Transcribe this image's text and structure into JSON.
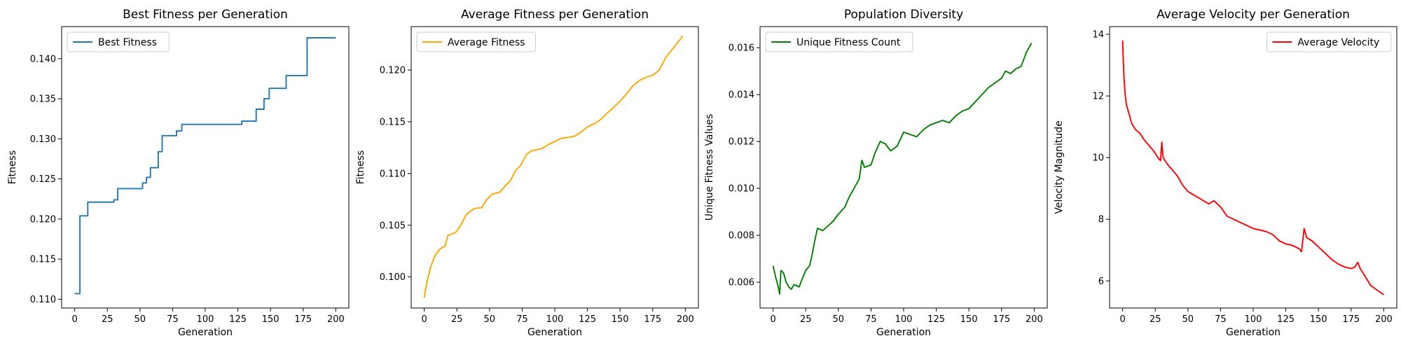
{
  "figure": {
    "background": "#ffffff"
  },
  "chart_data": [
    {
      "type": "line",
      "title": "Best Fitness per Generation",
      "xlabel": "Generation",
      "ylabel": "Fitness",
      "xlim": [
        -10,
        210
      ],
      "ylim": [
        0.1089,
        0.144
      ],
      "xticks": [
        0,
        25,
        50,
        75,
        100,
        125,
        150,
        175,
        200
      ],
      "yticks": [
        0.11,
        0.115,
        0.12,
        0.125,
        0.13,
        0.135,
        0.14
      ],
      "ytick_labels": [
        "0.110",
        "0.115",
        "0.120",
        "0.125",
        "0.130",
        "0.135",
        "0.140"
      ],
      "legend": "upper left",
      "series": [
        {
          "name": "Best Fitness",
          "color": "#1f77b4",
          "step": true,
          "points": [
            [
              0,
              0.1107
            ],
            [
              4,
              0.1204
            ],
            [
              10,
              0.1221
            ],
            [
              30,
              0.1224
            ],
            [
              33,
              0.1238
            ],
            [
              52,
              0.1245
            ],
            [
              55,
              0.1252
            ],
            [
              58,
              0.1264
            ],
            [
              64,
              0.1284
            ],
            [
              67,
              0.1304
            ],
            [
              78,
              0.131
            ],
            [
              82,
              0.1318
            ],
            [
              128,
              0.1322
            ],
            [
              139,
              0.1337
            ],
            [
              145,
              0.135
            ],
            [
              149,
              0.1363
            ],
            [
              162,
              0.1379
            ],
            [
              178,
              0.1426
            ],
            [
              200,
              0.1426
            ]
          ]
        }
      ]
    },
    {
      "type": "line",
      "title": "Average Fitness per Generation",
      "xlabel": "Generation",
      "ylabel": "Fitness",
      "xlim": [
        -10,
        210
      ],
      "ylim": [
        0.097,
        0.1242
      ],
      "xticks": [
        0,
        25,
        50,
        75,
        100,
        125,
        150,
        175,
        200
      ],
      "yticks": [
        0.1,
        0.105,
        0.11,
        0.115,
        0.12
      ],
      "ytick_labels": [
        "0.100",
        "0.105",
        "0.110",
        "0.115",
        "0.120"
      ],
      "legend": "upper left",
      "series": [
        {
          "name": "Average Fitness",
          "color": "#ffa500",
          "points": [
            [
              0,
              0.098
            ],
            [
              2,
              0.0995
            ],
            [
              5,
              0.101
            ],
            [
              8,
              0.102
            ],
            [
              12,
              0.1027
            ],
            [
              16,
              0.103
            ],
            [
              18,
              0.104
            ],
            [
              24,
              0.1043
            ],
            [
              28,
              0.105
            ],
            [
              32,
              0.106
            ],
            [
              38,
              0.1066
            ],
            [
              44,
              0.1067
            ],
            [
              48,
              0.1075
            ],
            [
              52,
              0.108
            ],
            [
              58,
              0.1082
            ],
            [
              62,
              0.1088
            ],
            [
              66,
              0.1093
            ],
            [
              70,
              0.1103
            ],
            [
              74,
              0.1108
            ],
            [
              78,
              0.1118
            ],
            [
              82,
              0.1122
            ],
            [
              90,
              0.1124
            ],
            [
              95,
              0.1128
            ],
            [
              100,
              0.1131
            ],
            [
              105,
              0.1134
            ],
            [
              115,
              0.1136
            ],
            [
              120,
              0.114
            ],
            [
              125,
              0.1145
            ],
            [
              130,
              0.1148
            ],
            [
              135,
              0.1152
            ],
            [
              140,
              0.1158
            ],
            [
              145,
              0.1164
            ],
            [
              150,
              0.117
            ],
            [
              155,
              0.1177
            ],
            [
              160,
              0.1185
            ],
            [
              165,
              0.119
            ],
            [
              170,
              0.1193
            ],
            [
              175,
              0.1195
            ],
            [
              180,
              0.12
            ],
            [
              185,
              0.1212
            ],
            [
              190,
              0.122
            ],
            [
              195,
              0.1228
            ],
            [
              198,
              0.1233
            ]
          ]
        }
      ]
    },
    {
      "type": "line",
      "title": "Population Diversity",
      "xlabel": "Generation",
      "ylabel": "Unique Fitness Values",
      "xlim": [
        -10,
        210
      ],
      "ylim": [
        0.0049,
        0.0169
      ],
      "xticks": [
        0,
        25,
        50,
        75,
        100,
        125,
        150,
        175,
        200
      ],
      "yticks": [
        0.006,
        0.008,
        0.01,
        0.012,
        0.014,
        0.016
      ],
      "ytick_labels": [
        "0.006",
        "0.008",
        "0.010",
        "0.012",
        "0.014",
        "0.016"
      ],
      "legend": "upper left",
      "series": [
        {
          "name": "Unique Fitness Count",
          "color": "#008000",
          "points": [
            [
              0,
              0.0067
            ],
            [
              2,
              0.0062
            ],
            [
              4,
              0.0058
            ],
            [
              5,
              0.0055
            ],
            [
              6,
              0.0065
            ],
            [
              8,
              0.0064
            ],
            [
              10,
              0.006
            ],
            [
              12,
              0.0058
            ],
            [
              14,
              0.0057
            ],
            [
              16,
              0.0059
            ],
            [
              20,
              0.0058
            ],
            [
              22,
              0.0061
            ],
            [
              25,
              0.0065
            ],
            [
              28,
              0.0067
            ],
            [
              30,
              0.0072
            ],
            [
              32,
              0.0078
            ],
            [
              34,
              0.0083
            ],
            [
              38,
              0.0082
            ],
            [
              42,
              0.0084
            ],
            [
              46,
              0.0086
            ],
            [
              50,
              0.0089
            ],
            [
              55,
              0.0092
            ],
            [
              58,
              0.0096
            ],
            [
              62,
              0.01
            ],
            [
              66,
              0.0104
            ],
            [
              68,
              0.0112
            ],
            [
              70,
              0.0109
            ],
            [
              75,
              0.011
            ],
            [
              78,
              0.0115
            ],
            [
              82,
              0.012
            ],
            [
              86,
              0.0119
            ],
            [
              90,
              0.0116
            ],
            [
              95,
              0.0118
            ],
            [
              100,
              0.0124
            ],
            [
              105,
              0.0123
            ],
            [
              110,
              0.0122
            ],
            [
              115,
              0.0125
            ],
            [
              120,
              0.0127
            ],
            [
              125,
              0.0128
            ],
            [
              130,
              0.0129
            ],
            [
              135,
              0.0128
            ],
            [
              140,
              0.0131
            ],
            [
              145,
              0.0133
            ],
            [
              150,
              0.0134
            ],
            [
              155,
              0.0137
            ],
            [
              160,
              0.014
            ],
            [
              165,
              0.0143
            ],
            [
              170,
              0.0145
            ],
            [
              175,
              0.0147
            ],
            [
              178,
              0.015
            ],
            [
              182,
              0.0149
            ],
            [
              186,
              0.0151
            ],
            [
              190,
              0.0152
            ],
            [
              194,
              0.0158
            ],
            [
              198,
              0.0162
            ]
          ]
        }
      ]
    },
    {
      "type": "line",
      "title": "Average Velocity per Generation",
      "xlabel": "Generation",
      "ylabel": "Velocity Magnitude",
      "xlim": [
        -10,
        210
      ],
      "ylim": [
        5.12,
        14.25
      ],
      "xticks": [
        0,
        25,
        50,
        75,
        100,
        125,
        150,
        175,
        200
      ],
      "yticks": [
        6,
        8,
        10,
        12,
        14
      ],
      "ytick_labels": [
        "6",
        "8",
        "10",
        "12",
        "14"
      ],
      "legend": "upper right",
      "series": [
        {
          "name": "Average Velocity",
          "color": "#ff0000",
          "points": [
            [
              0,
              13.8
            ],
            [
              1,
              12.6
            ],
            [
              2,
              12.0
            ],
            [
              3,
              11.7
            ],
            [
              5,
              11.4
            ],
            [
              7,
              11.1
            ],
            [
              10,
              10.9
            ],
            [
              13,
              10.8
            ],
            [
              16,
              10.6
            ],
            [
              20,
              10.4
            ],
            [
              24,
              10.2
            ],
            [
              27,
              10.0
            ],
            [
              29,
              9.9
            ],
            [
              30,
              10.5
            ],
            [
              31,
              10.0
            ],
            [
              34,
              9.8
            ],
            [
              38,
              9.6
            ],
            [
              42,
              9.4
            ],
            [
              46,
              9.1
            ],
            [
              50,
              8.9
            ],
            [
              54,
              8.8
            ],
            [
              58,
              8.7
            ],
            [
              62,
              8.6
            ],
            [
              66,
              8.5
            ],
            [
              70,
              8.6
            ],
            [
              75,
              8.4
            ],
            [
              80,
              8.1
            ],
            [
              85,
              8.0
            ],
            [
              90,
              7.9
            ],
            [
              95,
              7.8
            ],
            [
              100,
              7.7
            ],
            [
              105,
              7.65
            ],
            [
              110,
              7.6
            ],
            [
              115,
              7.5
            ],
            [
              120,
              7.3
            ],
            [
              125,
              7.2
            ],
            [
              130,
              7.15
            ],
            [
              135,
              7.05
            ],
            [
              137,
              6.95
            ],
            [
              139,
              7.7
            ],
            [
              141,
              7.4
            ],
            [
              145,
              7.3
            ],
            [
              150,
              7.1
            ],
            [
              155,
              6.9
            ],
            [
              160,
              6.7
            ],
            [
              165,
              6.55
            ],
            [
              170,
              6.45
            ],
            [
              175,
              6.4
            ],
            [
              178,
              6.45
            ],
            [
              180,
              6.6
            ],
            [
              182,
              6.4
            ],
            [
              185,
              6.2
            ],
            [
              190,
              5.85
            ],
            [
              195,
              5.7
            ],
            [
              200,
              5.55
            ]
          ]
        }
      ]
    }
  ]
}
